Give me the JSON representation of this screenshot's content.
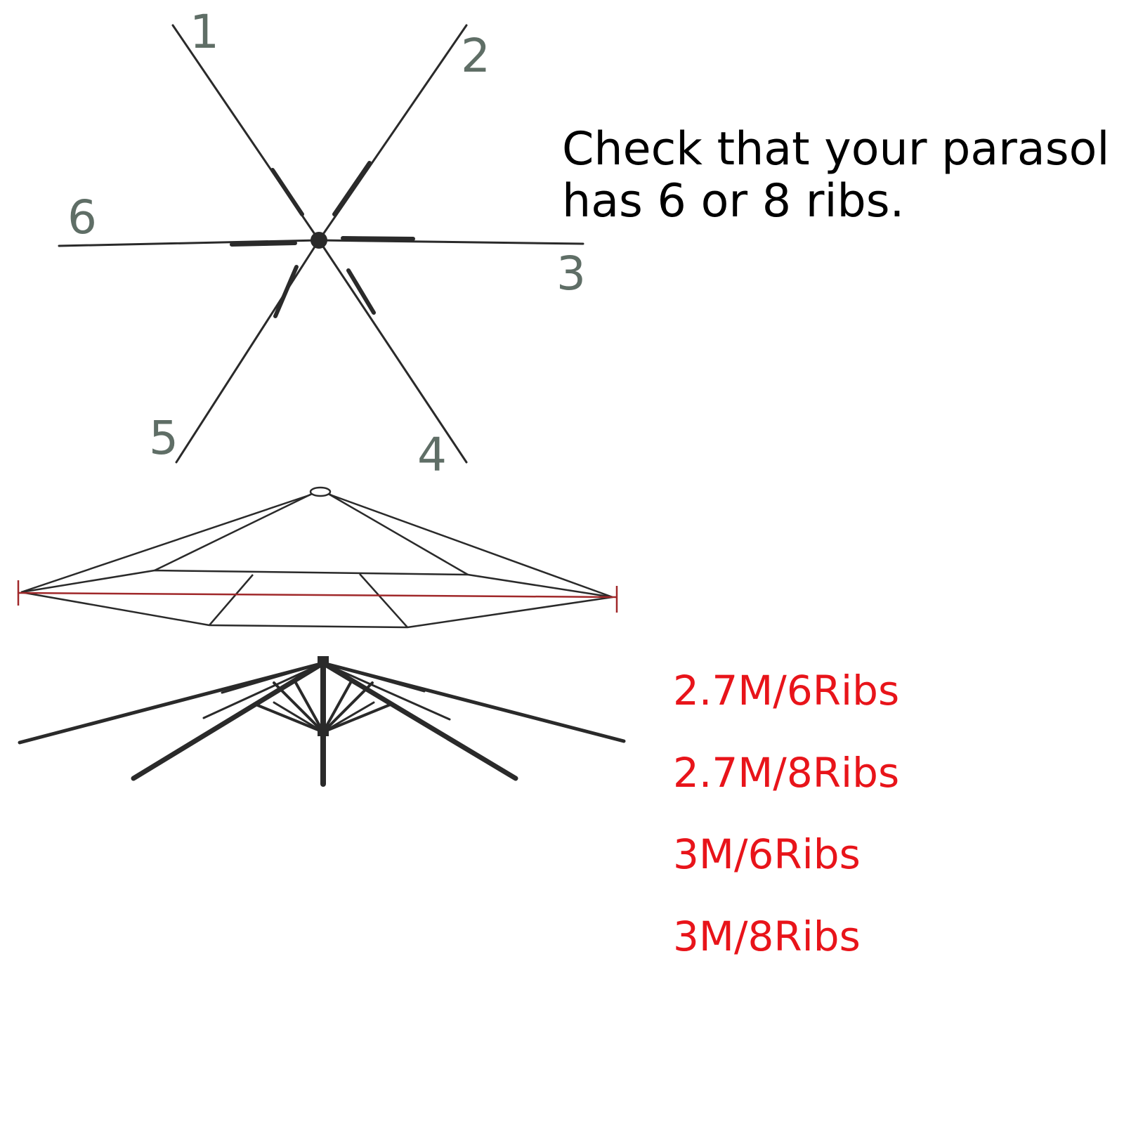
{
  "rib_labels": [
    "1",
    "2",
    "3",
    "4",
    "5",
    "6"
  ],
  "instruction": {
    "line1": "Check that your parasol",
    "line2": "has 6 or 8 ribs."
  },
  "size_options": [
    "2.7M/6Ribs",
    "2.7M/8Ribs",
    "3M/6Ribs",
    "3M/8Ribs"
  ],
  "colors": {
    "instruction_text": "#000000",
    "size_text": "#e8141a",
    "rib_number": "#5f6e66",
    "frame_line": "#2a2a2a",
    "measure_line": "#a0282a"
  }
}
